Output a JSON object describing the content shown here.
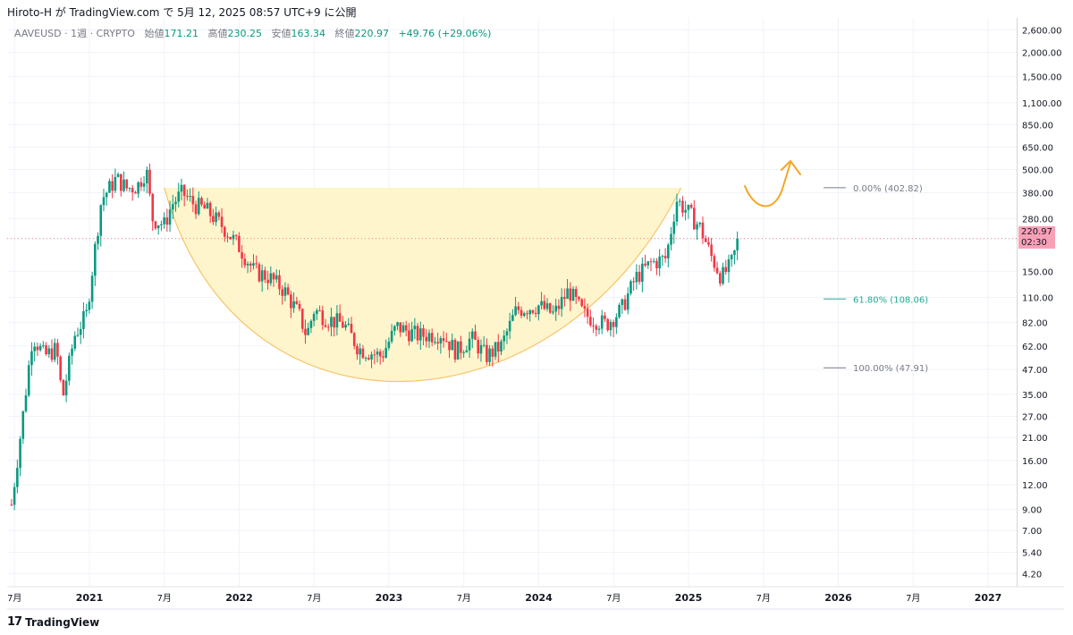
{
  "header": {
    "publish_text": "Hiroto-H が TradingView.com で 5月 12, 2025 08:57 UTC+9 に公開"
  },
  "legend": {
    "symbol": "AAVEUSD · 1週 · CRYPTO",
    "open_label": "始値",
    "open_value": "171.21",
    "high_label": "高値",
    "high_value": "230.25",
    "low_label": "安値",
    "low_value": "163.34",
    "close_label": "終値",
    "close_value": "220.97",
    "change_value": "+49.76 (+29.06%)"
  },
  "price_badge": {
    "price": "220.97",
    "countdown": "02:30"
  },
  "footer": {
    "logo_mark": "17",
    "brand": "TradingView"
  },
  "colors": {
    "up": "#089981",
    "down": "#f23645",
    "fib_gray": "#787b86",
    "fib_green": "#22ab94",
    "cup_fill": "#fff3c4",
    "cup_stroke": "#f7c56b",
    "arrow": "#f5a623",
    "grid": "#f0f3fa",
    "badge": "#f7a1b7"
  },
  "chart_data": {
    "type": "candlestick",
    "symbol": "AAVEUSD",
    "interval": "1週",
    "scale": "log",
    "y_ticks": [
      2600,
      2000,
      1500,
      1100,
      850,
      650,
      500,
      380,
      280,
      220,
      150,
      110,
      82,
      62,
      47,
      35,
      27,
      21,
      16,
      12,
      9,
      7,
      5.4,
      4.2
    ],
    "y_tick_labels": [
      "2,600.00",
      "2,000.00",
      "1,500.00",
      "1,100.00",
      "850.00",
      "650.00",
      "500.00",
      "380.00",
      "280.00",
      "220.00",
      "150.00",
      "110.00",
      "82.00",
      "62.00",
      "47.00",
      "35.00",
      "27.00",
      "21.00",
      "16.00",
      "12.00",
      "9.00",
      "7.00",
      "5.40",
      "4.20"
    ],
    "x_ticks": [
      {
        "t": 2020.5,
        "label": "7月"
      },
      {
        "t": 2021.0,
        "label": "2021"
      },
      {
        "t": 2021.5,
        "label": "7月"
      },
      {
        "t": 2022.0,
        "label": "2022"
      },
      {
        "t": 2022.5,
        "label": "7月"
      },
      {
        "t": 2023.0,
        "label": "2023"
      },
      {
        "t": 2023.5,
        "label": "7月"
      },
      {
        "t": 2024.0,
        "label": "2024"
      },
      {
        "t": 2024.5,
        "label": "7月"
      },
      {
        "t": 2025.0,
        "label": "2025"
      },
      {
        "t": 2025.5,
        "label": "7月"
      },
      {
        "t": 2026.0,
        "label": "2026"
      },
      {
        "t": 2026.5,
        "label": "7月"
      },
      {
        "t": 2027.0,
        "label": "2027"
      }
    ],
    "key_points": [
      [
        2020.48,
        9.5
      ],
      [
        2020.55,
        25
      ],
      [
        2020.62,
        70
      ],
      [
        2020.7,
        55
      ],
      [
        2020.78,
        60
      ],
      [
        2020.82,
        33
      ],
      [
        2020.9,
        70
      ],
      [
        2020.98,
        90
      ],
      [
        2021.08,
        350
      ],
      [
        2021.18,
        450
      ],
      [
        2021.25,
        400
      ],
      [
        2021.32,
        410
      ],
      [
        2021.38,
        500
      ],
      [
        2021.42,
        280
      ],
      [
        2021.5,
        260
      ],
      [
        2021.55,
        330
      ],
      [
        2021.62,
        380
      ],
      [
        2021.7,
        330
      ],
      [
        2021.78,
        310
      ],
      [
        2021.9,
        250
      ],
      [
        2022.0,
        200
      ],
      [
        2022.1,
        150
      ],
      [
        2022.2,
        140
      ],
      [
        2022.3,
        120
      ],
      [
        2022.4,
        90
      ],
      [
        2022.45,
        70
      ],
      [
        2022.5,
        95
      ],
      [
        2022.6,
        85
      ],
      [
        2022.7,
        80
      ],
      [
        2022.8,
        60
      ],
      [
        2022.95,
        55
      ],
      [
        2023.05,
        78
      ],
      [
        2023.2,
        70
      ],
      [
        2023.35,
        72
      ],
      [
        2023.45,
        58
      ],
      [
        2023.55,
        68
      ],
      [
        2023.65,
        55
      ],
      [
        2023.75,
        62
      ],
      [
        2023.85,
        95
      ],
      [
        2024.0,
        100
      ],
      [
        2024.1,
        90
      ],
      [
        2024.2,
        120
      ],
      [
        2024.3,
        90
      ],
      [
        2024.45,
        80
      ],
      [
        2024.55,
        95
      ],
      [
        2024.65,
        140
      ],
      [
        2024.75,
        165
      ],
      [
        2024.85,
        175
      ],
      [
        2024.92,
        350
      ],
      [
        2025.0,
        300
      ],
      [
        2025.08,
        250
      ],
      [
        2025.15,
        180
      ],
      [
        2025.22,
        140
      ],
      [
        2025.28,
        160
      ],
      [
        2025.34,
        220.97
      ]
    ],
    "fib_levels": [
      {
        "label": "0.00% (402.82)",
        "value": 402.82,
        "color": "gray"
      },
      {
        "label": "61.80% (108.06)",
        "value": 108.06,
        "color": "green"
      },
      {
        "label": "100.00% (47.91)",
        "value": 47.91,
        "color": "gray"
      }
    ],
    "cup_pattern": {
      "start": 2021.5,
      "end": 2024.95,
      "rim": 402.82,
      "bottom": 47.91
    },
    "current_price": 220.97
  }
}
